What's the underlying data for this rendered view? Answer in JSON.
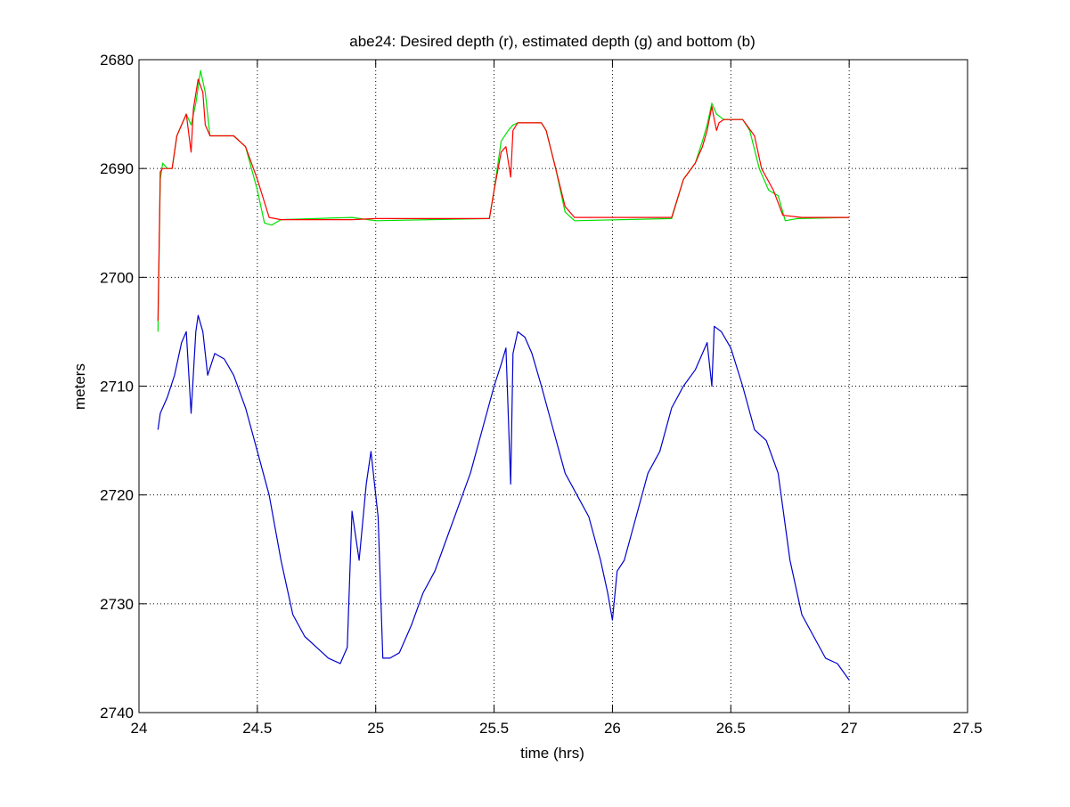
{
  "chart_data": {
    "type": "line",
    "title": "abe24: Desired depth (r), estimated depth (g) and bottom (b)",
    "xlabel": "time (hrs)",
    "ylabel": "meters",
    "xlim": [
      24,
      27.5
    ],
    "ylim": [
      2680,
      2740
    ],
    "y_reversed": true,
    "grid": true,
    "x_ticks": [
      24,
      24.5,
      25,
      25.5,
      26,
      26.5,
      27,
      27.5
    ],
    "x_tick_labels": [
      "24",
      "24.5",
      "25",
      "25.5",
      "26",
      "26.5",
      "27",
      "27.5"
    ],
    "y_ticks": [
      2680,
      2690,
      2700,
      2710,
      2720,
      2730,
      2740
    ],
    "y_tick_labels": [
      "2680",
      "2690",
      "2700",
      "2710",
      "2720",
      "2730",
      "2740"
    ],
    "series": [
      {
        "key": "desired",
        "color": "#ff0000",
        "points": [
          [
            24.08,
            2704
          ],
          [
            24.09,
            2690.3
          ],
          [
            24.1,
            2690
          ],
          [
            24.12,
            2690
          ],
          [
            24.14,
            2690
          ],
          [
            24.16,
            2687
          ],
          [
            24.18,
            2686
          ],
          [
            24.2,
            2685
          ],
          [
            24.22,
            2688.5
          ],
          [
            24.23,
            2684.5
          ],
          [
            24.25,
            2681.8
          ],
          [
            24.27,
            2683
          ],
          [
            24.28,
            2686
          ],
          [
            24.3,
            2687
          ],
          [
            24.4,
            2687
          ],
          [
            24.45,
            2688
          ],
          [
            24.5,
            2691
          ],
          [
            24.55,
            2694.5
          ],
          [
            24.6,
            2694.7
          ],
          [
            24.9,
            2694.7
          ],
          [
            25,
            2694.6
          ],
          [
            25.48,
            2694.6
          ],
          [
            25.5,
            2692
          ],
          [
            25.53,
            2688.5
          ],
          [
            25.55,
            2688
          ],
          [
            25.57,
            2690.8
          ],
          [
            25.58,
            2686.5
          ],
          [
            25.6,
            2685.8
          ],
          [
            25.7,
            2685.8
          ],
          [
            25.72,
            2686.5
          ],
          [
            25.76,
            2690
          ],
          [
            25.8,
            2693.5
          ],
          [
            25.84,
            2694.5
          ],
          [
            26.25,
            2694.5
          ],
          [
            26.3,
            2691
          ],
          [
            26.35,
            2689.5
          ],
          [
            26.38,
            2688
          ],
          [
            26.4,
            2686.5
          ],
          [
            26.42,
            2684.3
          ],
          [
            26.43,
            2685.5
          ],
          [
            26.44,
            2686.5
          ],
          [
            26.45,
            2685.8
          ],
          [
            26.47,
            2685.5
          ],
          [
            26.55,
            2685.5
          ],
          [
            26.6,
            2687
          ],
          [
            26.63,
            2690
          ],
          [
            26.68,
            2692
          ],
          [
            26.72,
            2694.3
          ],
          [
            26.8,
            2694.5
          ],
          [
            27,
            2694.5
          ]
        ]
      },
      {
        "key": "estimated",
        "color": "#00e000",
        "points": [
          [
            24.08,
            2705
          ],
          [
            24.09,
            2691
          ],
          [
            24.1,
            2689.5
          ],
          [
            24.12,
            2690
          ],
          [
            24.14,
            2690
          ],
          [
            24.16,
            2687
          ],
          [
            24.18,
            2686
          ],
          [
            24.2,
            2685
          ],
          [
            24.22,
            2686
          ],
          [
            24.24,
            2684
          ],
          [
            24.26,
            2681
          ],
          [
            24.28,
            2683
          ],
          [
            24.3,
            2687
          ],
          [
            24.4,
            2687
          ],
          [
            24.45,
            2688
          ],
          [
            24.5,
            2692
          ],
          [
            24.53,
            2695
          ],
          [
            24.56,
            2695.2
          ],
          [
            24.6,
            2694.7
          ],
          [
            24.9,
            2694.5
          ],
          [
            25,
            2694.8
          ],
          [
            25.48,
            2694.6
          ],
          [
            25.5,
            2692
          ],
          [
            25.53,
            2687.5
          ],
          [
            25.56,
            2686.5
          ],
          [
            25.58,
            2686
          ],
          [
            25.6,
            2685.8
          ],
          [
            25.7,
            2685.8
          ],
          [
            25.72,
            2686.5
          ],
          [
            25.76,
            2690
          ],
          [
            25.8,
            2694
          ],
          [
            25.84,
            2694.8
          ],
          [
            26.25,
            2694.6
          ],
          [
            26.3,
            2691
          ],
          [
            26.35,
            2689.5
          ],
          [
            26.38,
            2687.5
          ],
          [
            26.4,
            2686
          ],
          [
            26.42,
            2684
          ],
          [
            26.44,
            2685
          ],
          [
            26.47,
            2685.5
          ],
          [
            26.55,
            2685.5
          ],
          [
            26.58,
            2686.5
          ],
          [
            26.62,
            2690
          ],
          [
            26.66,
            2692
          ],
          [
            26.7,
            2692.5
          ],
          [
            26.73,
            2694.8
          ],
          [
            26.78,
            2694.6
          ],
          [
            27,
            2694.5
          ]
        ]
      },
      {
        "key": "bottom",
        "color": "#0000cc",
        "points": [
          [
            24.08,
            2714
          ],
          [
            24.09,
            2712.5
          ],
          [
            24.12,
            2711
          ],
          [
            24.15,
            2709
          ],
          [
            24.18,
            2706
          ],
          [
            24.2,
            2705
          ],
          [
            24.22,
            2712.5
          ],
          [
            24.24,
            2705
          ],
          [
            24.25,
            2703.5
          ],
          [
            24.27,
            2705
          ],
          [
            24.29,
            2709
          ],
          [
            24.32,
            2707
          ],
          [
            24.36,
            2707.5
          ],
          [
            24.4,
            2709
          ],
          [
            24.45,
            2712
          ],
          [
            24.5,
            2716
          ],
          [
            24.55,
            2720
          ],
          [
            24.6,
            2726
          ],
          [
            24.65,
            2731
          ],
          [
            24.7,
            2733
          ],
          [
            24.75,
            2734
          ],
          [
            24.8,
            2735
          ],
          [
            24.85,
            2735.5
          ],
          [
            24.88,
            2734
          ],
          [
            24.9,
            2721.5
          ],
          [
            24.93,
            2726
          ],
          [
            24.96,
            2719
          ],
          [
            24.98,
            2716
          ],
          [
            25.01,
            2722
          ],
          [
            25.03,
            2735
          ],
          [
            25.06,
            2735
          ],
          [
            25.1,
            2734.5
          ],
          [
            25.15,
            2732
          ],
          [
            25.2,
            2729
          ],
          [
            25.25,
            2727
          ],
          [
            25.3,
            2724
          ],
          [
            25.35,
            2721
          ],
          [
            25.4,
            2718
          ],
          [
            25.45,
            2714
          ],
          [
            25.5,
            2710
          ],
          [
            25.53,
            2708
          ],
          [
            25.55,
            2706.5
          ],
          [
            25.57,
            2719
          ],
          [
            25.58,
            2707
          ],
          [
            25.6,
            2705
          ],
          [
            25.63,
            2705.5
          ],
          [
            25.66,
            2707
          ],
          [
            25.7,
            2710
          ],
          [
            25.75,
            2714
          ],
          [
            25.8,
            2718
          ],
          [
            25.85,
            2720
          ],
          [
            25.9,
            2722
          ],
          [
            25.95,
            2726
          ],
          [
            25.98,
            2729
          ],
          [
            26,
            2731.5
          ],
          [
            26.02,
            2727
          ],
          [
            26.05,
            2726
          ],
          [
            26.1,
            2722
          ],
          [
            26.15,
            2718
          ],
          [
            26.2,
            2716
          ],
          [
            26.25,
            2712
          ],
          [
            26.3,
            2710
          ],
          [
            26.35,
            2708.5
          ],
          [
            26.38,
            2707
          ],
          [
            26.4,
            2706
          ],
          [
            26.42,
            2710
          ],
          [
            26.43,
            2704.5
          ],
          [
            26.46,
            2705
          ],
          [
            26.5,
            2706.5
          ],
          [
            26.55,
            2710
          ],
          [
            26.6,
            2714
          ],
          [
            26.65,
            2715
          ],
          [
            26.7,
            2718
          ],
          [
            26.75,
            2726
          ],
          [
            26.8,
            2731
          ],
          [
            26.85,
            2733
          ],
          [
            26.9,
            2735
          ],
          [
            26.95,
            2735.5
          ],
          [
            27,
            2737
          ]
        ]
      }
    ]
  }
}
